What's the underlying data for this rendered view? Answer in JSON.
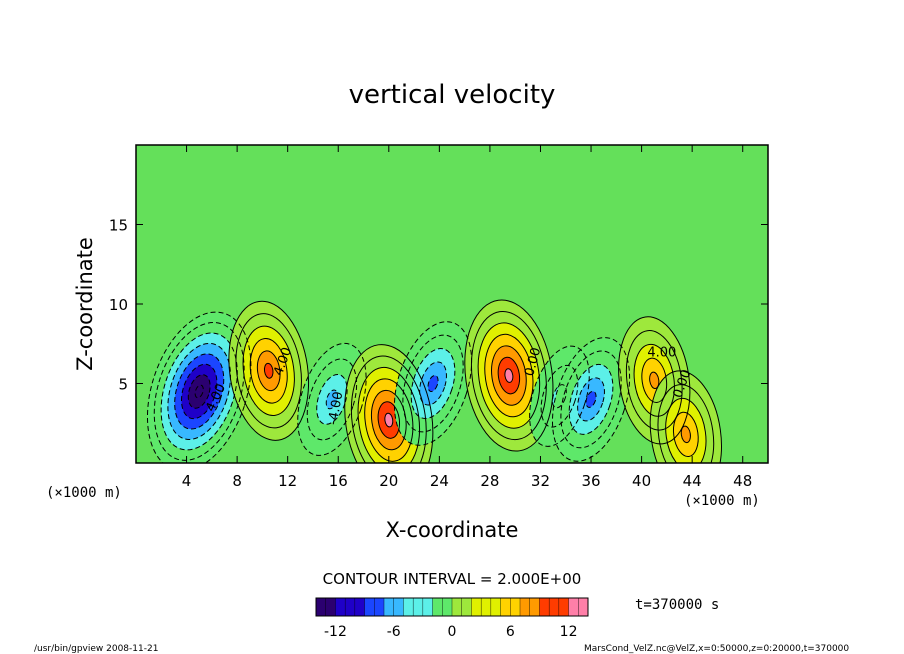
{
  "chart_data": {
    "type": "heatmap",
    "title": "vertical velocity",
    "xlabel": "X-coordinate",
    "ylabel": "Z-coordinate",
    "x_unit": "(×1000 m)",
    "y_unit": "(×1000 m)",
    "xlim": [
      0,
      50
    ],
    "ylim": [
      0,
      20
    ],
    "x_ticks": [
      4,
      8,
      12,
      16,
      20,
      24,
      28,
      32,
      36,
      40,
      44,
      48
    ],
    "y_ticks": [
      5,
      10,
      15
    ],
    "contour_interval_text": "CONTOUR INTERVAL = 2.000E+00",
    "time_text": "t=370000 s",
    "colorbar": {
      "min": -14,
      "max": 14,
      "ticks": [
        -12,
        -6,
        0,
        6,
        12
      ],
      "colors": [
        "#2b0070",
        "#1f00c8",
        "#1b46ff",
        "#38b8ff",
        "#5cf0e8",
        "#5ee86a",
        "#9ee83c",
        "#e0f000",
        "#ffd200",
        "#ff9a00",
        "#ff3c00",
        "#ff7fa8"
      ]
    },
    "contour_labels": [
      "4.00",
      "0.00",
      "-4.00"
    ],
    "features": [
      {
        "x": 5.0,
        "z": 4.5,
        "w": -14
      },
      {
        "x": 10.5,
        "z": 5.8,
        "w": 10
      },
      {
        "x": 15.5,
        "z": 4.0,
        "w": -5
      },
      {
        "x": 20.0,
        "z": 2.7,
        "w": 11
      },
      {
        "x": 23.5,
        "z": 5.0,
        "w": -7
      },
      {
        "x": 29.5,
        "z": 5.5,
        "w": 12
      },
      {
        "x": 33.5,
        "z": 4.2,
        "w": -4
      },
      {
        "x": 36.0,
        "z": 4.0,
        "w": -8
      },
      {
        "x": 41.0,
        "z": 5.2,
        "w": 8
      },
      {
        "x": 43.5,
        "z": 1.8,
        "w": 8
      }
    ]
  },
  "footer": {
    "left": "/usr/bin/gpview   2008-11-21",
    "right": "MarsCond_VelZ.nc@VelZ,x=0:50000,z=0:20000,t=370000"
  }
}
